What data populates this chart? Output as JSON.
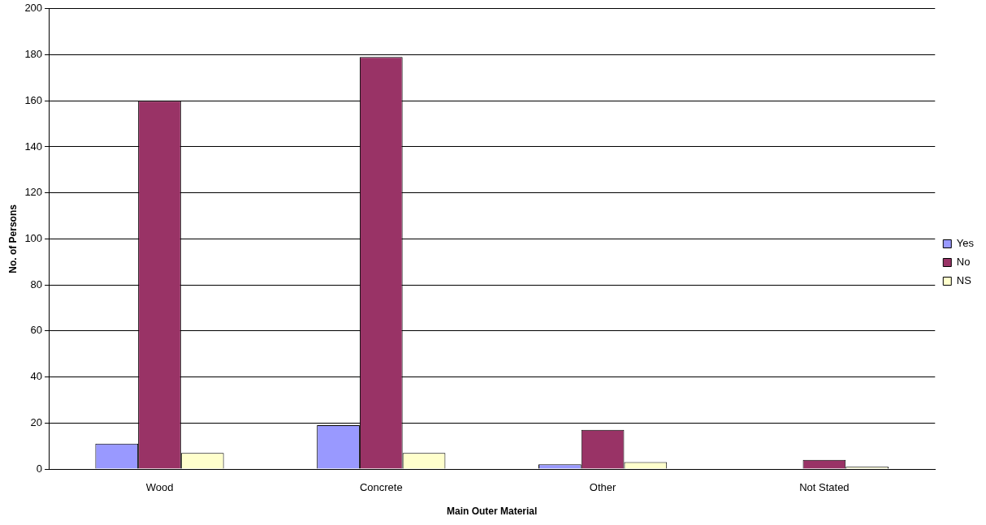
{
  "chart_data": {
    "type": "bar",
    "xlabel": "Main Outer Material",
    "ylabel": "No. of Persons",
    "categories": [
      "Wood",
      "Concrete",
      "Other",
      "Not Stated"
    ],
    "series": [
      {
        "name": "Yes",
        "color": "#9999ff",
        "values": [
          11,
          19,
          2,
          0
        ]
      },
      {
        "name": "No",
        "color": "#993366",
        "values": [
          160,
          179,
          17,
          4
        ]
      },
      {
        "name": "NS",
        "color": "#ffffcc",
        "values": [
          7,
          7,
          3,
          1
        ]
      }
    ],
    "ylim": [
      0,
      200
    ],
    "yticks": [
      0,
      20,
      40,
      60,
      80,
      100,
      120,
      140,
      160,
      180,
      200
    ],
    "grid": "y",
    "legend": "right"
  }
}
